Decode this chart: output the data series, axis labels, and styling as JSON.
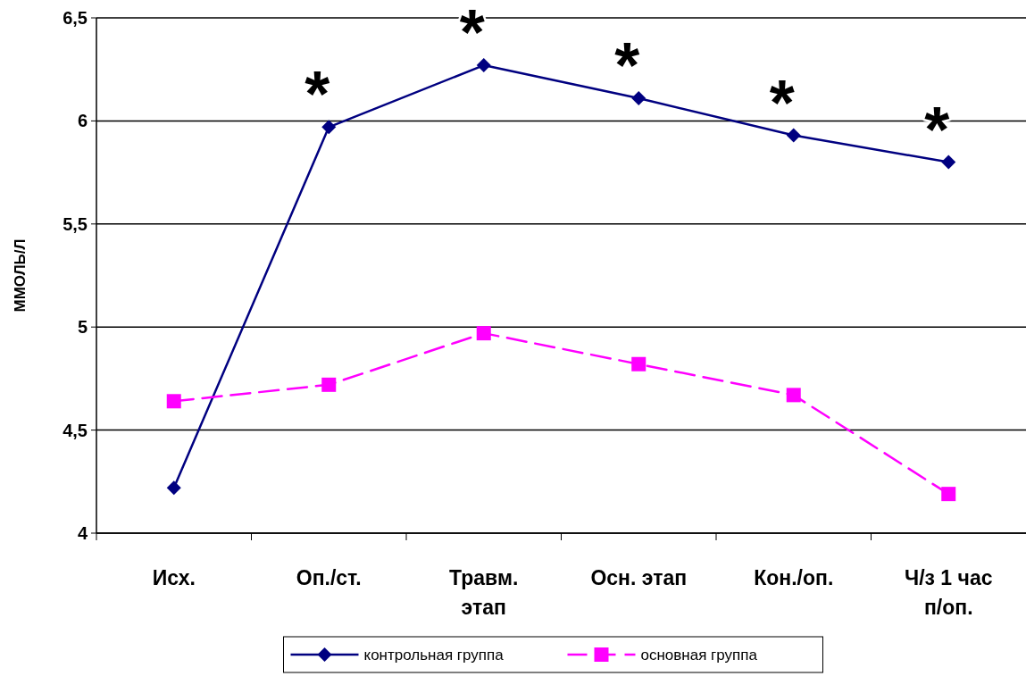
{
  "chart_data": {
    "type": "line",
    "ylabel": "ММОЛЬ/Л",
    "categories": [
      "Исх.",
      "Оп./ст.",
      "Травм.\nэтап",
      "Осн. этап",
      "Кон./оп.",
      "Ч/з 1 час\nп/оп."
    ],
    "series": [
      {
        "name": "контрольная группа",
        "color": "#000080",
        "values": [
          4.22,
          5.97,
          6.27,
          6.11,
          5.93,
          5.8
        ],
        "marker": "diamond",
        "line_style": "solid"
      },
      {
        "name": "основная группа",
        "color": "#ff00ff",
        "values": [
          4.64,
          4.72,
          4.97,
          4.82,
          4.67,
          4.19
        ],
        "marker": "square",
        "line_style": "dashed"
      }
    ],
    "ylim": [
      4,
      6.5
    ],
    "yticks": [
      4,
      {
        "value": 4.5,
        "label": "4,5"
      },
      5,
      {
        "value": 5.5,
        "label": "5,5"
      },
      6,
      {
        "value": 6.5,
        "label": "6,5"
      }
    ],
    "grid": "y",
    "legend": "bottom",
    "annotations": [
      {
        "text": "*",
        "x": "Оп./ст.",
        "y": 5.97
      },
      {
        "text": "*",
        "x": "Травм.\nэтап",
        "y": 6.27
      },
      {
        "text": "*",
        "x": "Осн. этап",
        "y": 6.11
      },
      {
        "text": "*",
        "x": "Кон./оп.",
        "y": 5.93
      },
      {
        "text": "*",
        "x": "Ч/з 1 час\nп/оп.",
        "y": 5.8
      }
    ]
  }
}
